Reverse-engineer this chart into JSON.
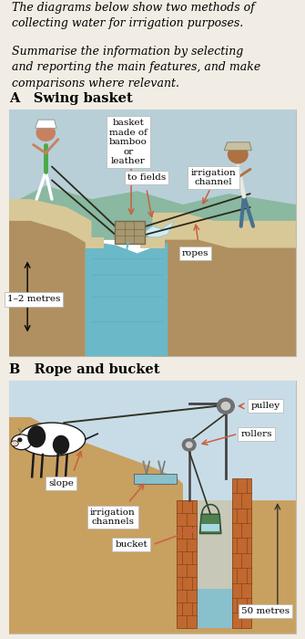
{
  "fig_bg": "#f2ede4",
  "border_color": "#bbbbbb",
  "intro_text_1": "The diagrams below show two methods of\ncollecting water for irrigation purposes.",
  "intro_text_2": "Summarise the information by selecting\nand reporting the main features, and make\ncomparisons where relevant.",
  "section_a_title": "A   Swing basket",
  "section_b_title": "B   Rope and bucket",
  "annotation_ec": "#aaaaaa",
  "sky_color_a": "#b8cfd8",
  "ground_color_a": "#b09060",
  "water_color_a": "#6ab8c8",
  "sand_color_a": "#d8c898",
  "bg_hills": "#8ab8a0",
  "sky_color_b": "#c8dce8",
  "ground_color_b": "#c8a060",
  "water_color_b": "#88c0cc",
  "brick_color_b": "#c06830",
  "well_interior": "#c8c8b8",
  "arrow_color": "#c86040",
  "rope_color": "#2a2a1a",
  "font_size_intro": 9,
  "font_size_section": 10.5,
  "font_size_label": 7.5,
  "font_family": "DejaVu Serif"
}
